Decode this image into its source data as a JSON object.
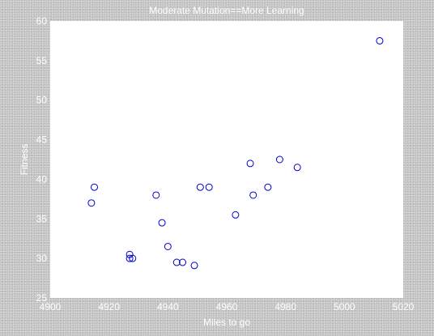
{
  "chart_data": {
    "type": "scatter",
    "title": "Moderate Mutation==More Learning",
    "xlabel": "Miles to go",
    "ylabel": "Fitness",
    "xlim": [
      4900,
      5020
    ],
    "ylim": [
      25,
      60
    ],
    "xticks": [
      4900,
      4920,
      4940,
      4960,
      4980,
      5000,
      5020
    ],
    "yticks": [
      25,
      30,
      35,
      40,
      45,
      50,
      55,
      60
    ],
    "grid": false,
    "marker": "circle-open",
    "marker_color": "#0000cc",
    "plot_background": "#ffffff",
    "points": [
      {
        "x": 4914,
        "y": 37.0
      },
      {
        "x": 4915,
        "y": 39.0
      },
      {
        "x": 4927,
        "y": 30.5
      },
      {
        "x": 4927,
        "y": 30.0
      },
      {
        "x": 4928,
        "y": 30.0
      },
      {
        "x": 4936,
        "y": 38.0
      },
      {
        "x": 4938,
        "y": 34.5
      },
      {
        "x": 4940,
        "y": 31.5
      },
      {
        "x": 4943,
        "y": 29.5
      },
      {
        "x": 4945,
        "y": 29.5
      },
      {
        "x": 4949,
        "y": 29.1
      },
      {
        "x": 4951,
        "y": 39.0
      },
      {
        "x": 4954,
        "y": 39.0
      },
      {
        "x": 4963,
        "y": 35.5
      },
      {
        "x": 4968,
        "y": 42.0
      },
      {
        "x": 4969,
        "y": 38.0
      },
      {
        "x": 4974,
        "y": 39.0
      },
      {
        "x": 4978,
        "y": 42.5
      },
      {
        "x": 4984,
        "y": 41.5
      },
      {
        "x": 5012,
        "y": 57.5
      }
    ]
  }
}
